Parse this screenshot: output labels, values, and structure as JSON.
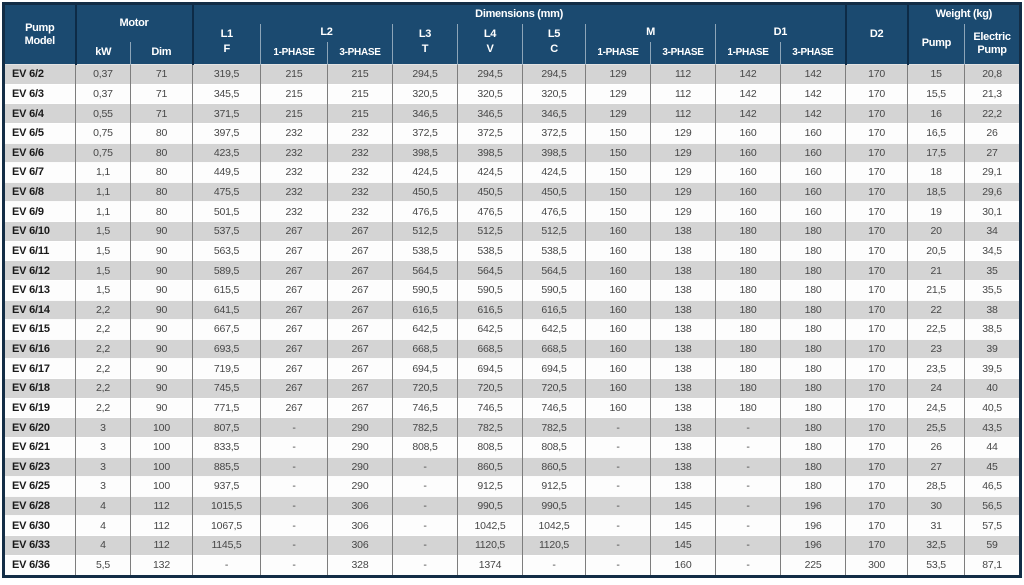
{
  "colors": {
    "header_bg": "#1b4a70",
    "frame": "#132d46",
    "stripe": "#d4d4d4",
    "data_text": "#474747"
  },
  "header": {
    "pump_model": "Pump Model",
    "motor": "Motor",
    "kw": "kW",
    "dim": "Dim",
    "dimensions": "Dimensions (mm)",
    "l1": "L1",
    "f": "F",
    "l2": "L2",
    "l3": "L3",
    "t": "T",
    "l4": "L4",
    "v": "V",
    "l5": "L5",
    "c": "C",
    "m": "M",
    "d1": "D1",
    "d2": "D2",
    "phase1": "1-PHASE",
    "phase3": "3-PHASE",
    "weight": "Weight (kg)",
    "pump": "Pump",
    "electric_pump": "Electric Pump"
  },
  "table": {
    "columns": [
      "model",
      "kw",
      "dim",
      "l1_f",
      "l2_1phase",
      "l2_3phase",
      "l3_t",
      "l4_v",
      "l5_c",
      "m_1phase",
      "m_3phase",
      "d1_1phase",
      "d1_3phase",
      "d2",
      "weight_pump",
      "weight_electric_pump"
    ],
    "rows": [
      {
        "model": "EV 6/2",
        "values": [
          "0,37",
          "71",
          "319,5",
          "215",
          "215",
          "294,5",
          "294,5",
          "294,5",
          "129",
          "112",
          "142",
          "142",
          "170",
          "15",
          "20,8"
        ]
      },
      {
        "model": "EV 6/3",
        "values": [
          "0,37",
          "71",
          "345,5",
          "215",
          "215",
          "320,5",
          "320,5",
          "320,5",
          "129",
          "112",
          "142",
          "142",
          "170",
          "15,5",
          "21,3"
        ]
      },
      {
        "model": "EV 6/4",
        "values": [
          "0,55",
          "71",
          "371,5",
          "215",
          "215",
          "346,5",
          "346,5",
          "346,5",
          "129",
          "112",
          "142",
          "142",
          "170",
          "16",
          "22,2"
        ]
      },
      {
        "model": "EV 6/5",
        "values": [
          "0,75",
          "80",
          "397,5",
          "232",
          "232",
          "372,5",
          "372,5",
          "372,5",
          "150",
          "129",
          "160",
          "160",
          "170",
          "16,5",
          "26"
        ]
      },
      {
        "model": "EV 6/6",
        "values": [
          "0,75",
          "80",
          "423,5",
          "232",
          "232",
          "398,5",
          "398,5",
          "398,5",
          "150",
          "129",
          "160",
          "160",
          "170",
          "17,5",
          "27"
        ]
      },
      {
        "model": "EV 6/7",
        "values": [
          "1,1",
          "80",
          "449,5",
          "232",
          "232",
          "424,5",
          "424,5",
          "424,5",
          "150",
          "129",
          "160",
          "160",
          "170",
          "18",
          "29,1"
        ]
      },
      {
        "model": "EV 6/8",
        "values": [
          "1,1",
          "80",
          "475,5",
          "232",
          "232",
          "450,5",
          "450,5",
          "450,5",
          "150",
          "129",
          "160",
          "160",
          "170",
          "18,5",
          "29,6"
        ]
      },
      {
        "model": "EV 6/9",
        "values": [
          "1,1",
          "80",
          "501,5",
          "232",
          "232",
          "476,5",
          "476,5",
          "476,5",
          "150",
          "129",
          "160",
          "160",
          "170",
          "19",
          "30,1"
        ]
      },
      {
        "model": "EV 6/10",
        "values": [
          "1,5",
          "90",
          "537,5",
          "267",
          "267",
          "512,5",
          "512,5",
          "512,5",
          "160",
          "138",
          "180",
          "180",
          "170",
          "20",
          "34"
        ]
      },
      {
        "model": "EV 6/11",
        "values": [
          "1,5",
          "90",
          "563,5",
          "267",
          "267",
          "538,5",
          "538,5",
          "538,5",
          "160",
          "138",
          "180",
          "180",
          "170",
          "20,5",
          "34,5"
        ]
      },
      {
        "model": "EV 6/12",
        "values": [
          "1,5",
          "90",
          "589,5",
          "267",
          "267",
          "564,5",
          "564,5",
          "564,5",
          "160",
          "138",
          "180",
          "180",
          "170",
          "21",
          "35"
        ]
      },
      {
        "model": "EV 6/13",
        "values": [
          "1,5",
          "90",
          "615,5",
          "267",
          "267",
          "590,5",
          "590,5",
          "590,5",
          "160",
          "138",
          "180",
          "180",
          "170",
          "21,5",
          "35,5"
        ]
      },
      {
        "model": "EV 6/14",
        "values": [
          "2,2",
          "90",
          "641,5",
          "267",
          "267",
          "616,5",
          "616,5",
          "616,5",
          "160",
          "138",
          "180",
          "180",
          "170",
          "22",
          "38"
        ]
      },
      {
        "model": "EV 6/15",
        "values": [
          "2,2",
          "90",
          "667,5",
          "267",
          "267",
          "642,5",
          "642,5",
          "642,5",
          "160",
          "138",
          "180",
          "180",
          "170",
          "22,5",
          "38,5"
        ]
      },
      {
        "model": "EV 6/16",
        "values": [
          "2,2",
          "90",
          "693,5",
          "267",
          "267",
          "668,5",
          "668,5",
          "668,5",
          "160",
          "138",
          "180",
          "180",
          "170",
          "23",
          "39"
        ]
      },
      {
        "model": "EV 6/17",
        "values": [
          "2,2",
          "90",
          "719,5",
          "267",
          "267",
          "694,5",
          "694,5",
          "694,5",
          "160",
          "138",
          "180",
          "180",
          "170",
          "23,5",
          "39,5"
        ]
      },
      {
        "model": "EV 6/18",
        "values": [
          "2,2",
          "90",
          "745,5",
          "267",
          "267",
          "720,5",
          "720,5",
          "720,5",
          "160",
          "138",
          "180",
          "180",
          "170",
          "24",
          "40"
        ]
      },
      {
        "model": "EV 6/19",
        "values": [
          "2,2",
          "90",
          "771,5",
          "267",
          "267",
          "746,5",
          "746,5",
          "746,5",
          "160",
          "138",
          "180",
          "180",
          "170",
          "24,5",
          "40,5"
        ]
      },
      {
        "model": "EV 6/20",
        "values": [
          "3",
          "100",
          "807,5",
          "-",
          "290",
          "782,5",
          "782,5",
          "782,5",
          "-",
          "138",
          "-",
          "180",
          "170",
          "25,5",
          "43,5"
        ]
      },
      {
        "model": "EV 6/21",
        "values": [
          "3",
          "100",
          "833,5",
          "-",
          "290",
          "808,5",
          "808,5",
          "808,5",
          "-",
          "138",
          "-",
          "180",
          "170",
          "26",
          "44"
        ]
      },
      {
        "model": "EV 6/23",
        "values": [
          "3",
          "100",
          "885,5",
          "-",
          "290",
          "-",
          "860,5",
          "860,5",
          "-",
          "138",
          "-",
          "180",
          "170",
          "27",
          "45"
        ]
      },
      {
        "model": "EV 6/25",
        "values": [
          "3",
          "100",
          "937,5",
          "-",
          "290",
          "-",
          "912,5",
          "912,5",
          "-",
          "138",
          "-",
          "180",
          "170",
          "28,5",
          "46,5"
        ]
      },
      {
        "model": "EV 6/28",
        "values": [
          "4",
          "112",
          "1015,5",
          "-",
          "306",
          "-",
          "990,5",
          "990,5",
          "-",
          "145",
          "-",
          "196",
          "170",
          "30",
          "56,5"
        ]
      },
      {
        "model": "EV 6/30",
        "values": [
          "4",
          "112",
          "1067,5",
          "-",
          "306",
          "-",
          "1042,5",
          "1042,5",
          "-",
          "145",
          "-",
          "196",
          "170",
          "31",
          "57,5"
        ]
      },
      {
        "model": "EV 6/33",
        "values": [
          "4",
          "112",
          "1145,5",
          "-",
          "306",
          "-",
          "1120,5",
          "1120,5",
          "-",
          "145",
          "-",
          "196",
          "170",
          "32,5",
          "59"
        ]
      },
      {
        "model": "EV 6/36",
        "values": [
          "5,5",
          "132",
          "-",
          "-",
          "328",
          "-",
          "1374",
          "-",
          "-",
          "160",
          "-",
          "225",
          "300",
          "53,5",
          "87,1"
        ]
      }
    ]
  }
}
